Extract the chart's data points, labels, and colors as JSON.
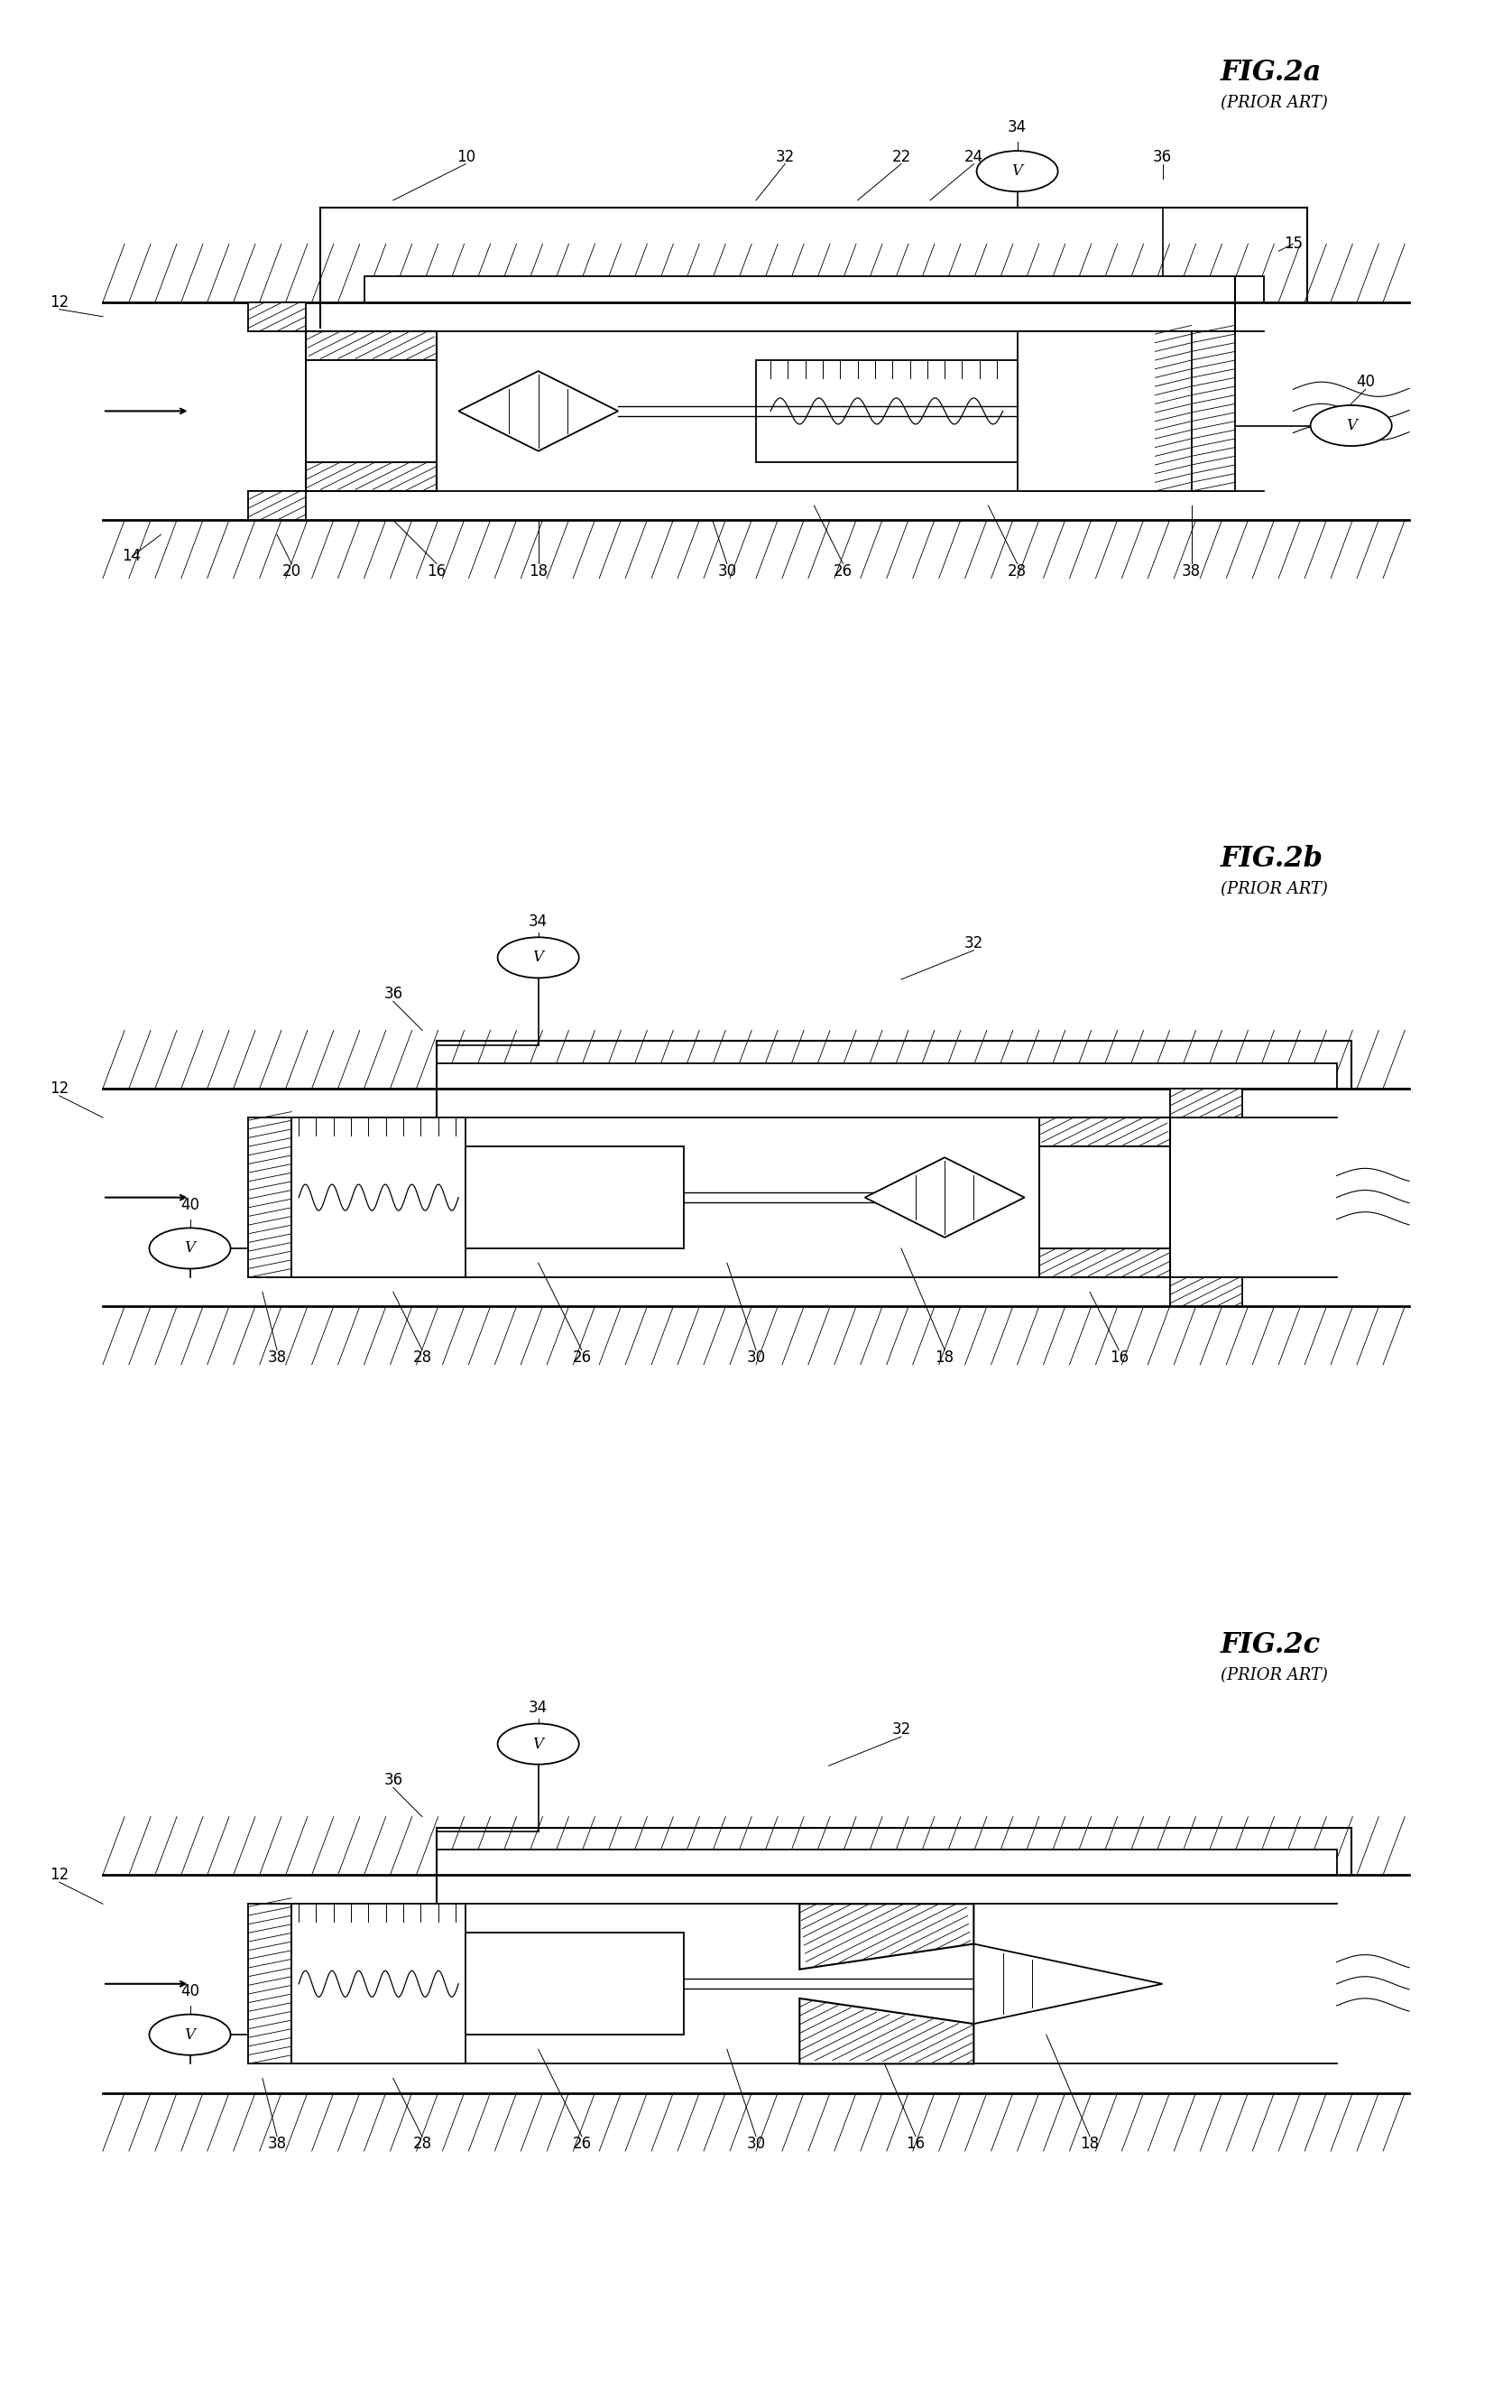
{
  "background": "#ffffff",
  "panels": [
    {
      "title": "FIG.2a",
      "subtitle": "(PRIOR ART)",
      "flow_dir": "right",
      "valve_side": "left",
      "cone_type": "diamond_left"
    },
    {
      "title": "FIG.2b",
      "subtitle": "(PRIOR ART)",
      "flow_dir": "right",
      "valve_side": "right",
      "cone_type": "diamond_right"
    },
    {
      "title": "FIG.2c",
      "subtitle": "(PRIOR ART)",
      "flow_dir": "right",
      "valve_side": "right",
      "cone_type": "cone_right"
    }
  ]
}
